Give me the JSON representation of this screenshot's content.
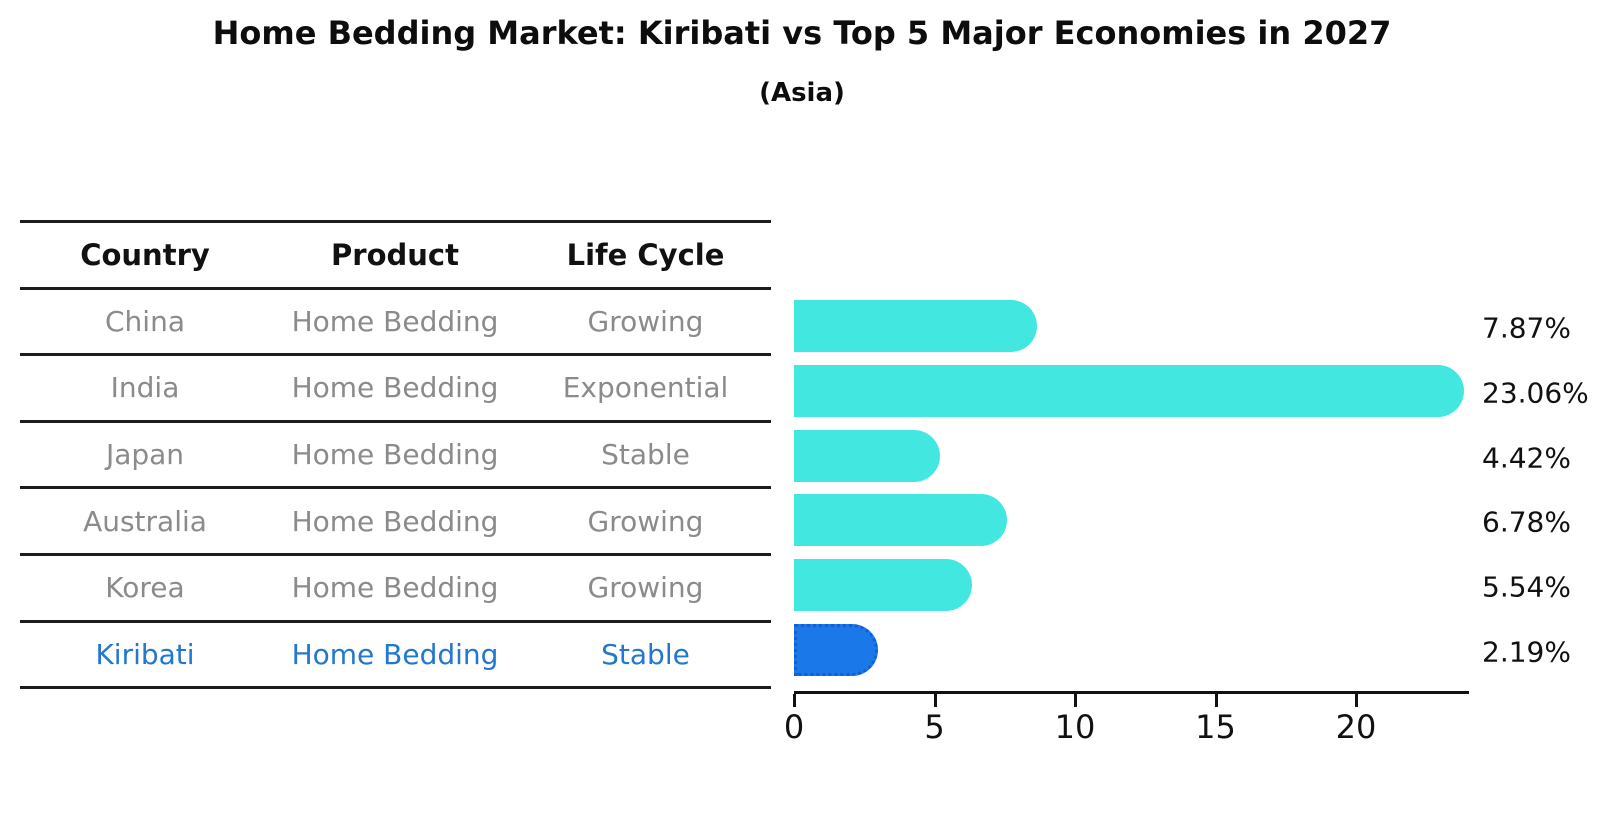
{
  "title": "Home Bedding Market: Kiribati vs Top 5 Major Economies in 2027",
  "subtitle": "(Asia)",
  "table": {
    "headers": [
      "Country",
      "Product",
      "Life Cycle"
    ],
    "rows": [
      {
        "country": "China",
        "product": "Home Bedding",
        "life_cycle": "Growing",
        "highlighted": false
      },
      {
        "country": "India",
        "product": "Home Bedding",
        "life_cycle": "Exponential",
        "highlighted": false
      },
      {
        "country": "Japan",
        "product": "Home Bedding",
        "life_cycle": "Stable",
        "highlighted": false
      },
      {
        "country": "Australia",
        "product": "Home Bedding",
        "life_cycle": "Growing",
        "highlighted": false
      },
      {
        "country": "Korea",
        "product": "Home Bedding",
        "life_cycle": "Growing",
        "highlighted": false
      },
      {
        "country": "Kiribati",
        "product": "Home Bedding",
        "life_cycle": "Stable",
        "highlighted": true
      }
    ]
  },
  "chart_data": {
    "type": "bar",
    "orientation": "horizontal",
    "title": "Home Bedding Market: Kiribati vs Top 5 Major Economies in 2027",
    "subtitle": "(Asia)",
    "categories": [
      "China",
      "India",
      "Japan",
      "Australia",
      "Korea",
      "Kiribati"
    ],
    "values": [
      7.87,
      23.06,
      4.42,
      6.78,
      5.54,
      2.19
    ],
    "value_labels": [
      "7.87%",
      "23.06%",
      "4.42%",
      "6.78%",
      "5.54%",
      "2.19%"
    ],
    "x_ticks": [
      0,
      5,
      10,
      15,
      20
    ],
    "xlim": [
      0,
      24
    ],
    "grid": false,
    "legend": "none",
    "highlight_index": 5,
    "colors": {
      "bar": "#42e7e0",
      "highlight_bar": "#1b78e8",
      "highlight_border": "#0f5fd7",
      "value_label": "#111111",
      "row_text": "#8b8b8b",
      "highlight_text": "#2277d0",
      "header_text": "#111111",
      "axis": "#111111"
    }
  }
}
